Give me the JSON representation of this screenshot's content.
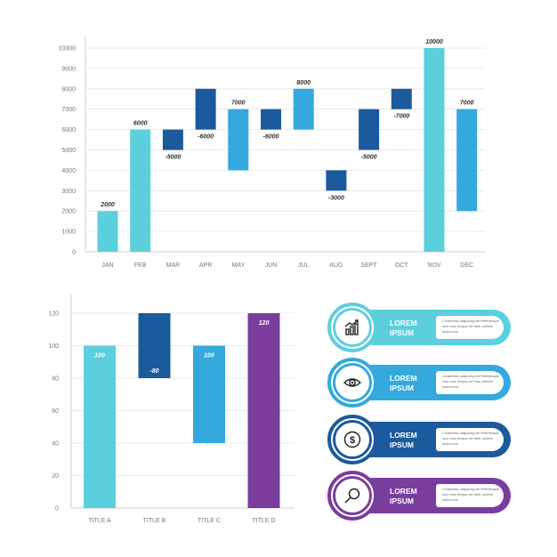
{
  "chart_data": [
    {
      "type": "waterfall",
      "categories": [
        "JAN",
        "FEB",
        "MAR",
        "APR",
        "MAY",
        "JUN",
        "JUL",
        "AUG",
        "SEPT",
        "OCT",
        "NOV",
        "DEC"
      ],
      "values": [
        2000,
        6000,
        -5000,
        -6000,
        7000,
        -6000,
        8000,
        -3000,
        -5000,
        -7000,
        10000,
        7000
      ],
      "bars": [
        {
          "base": 0,
          "top": 2000
        },
        {
          "base": 0,
          "top": 6000
        },
        {
          "base": 5000,
          "top": 6000
        },
        {
          "base": 6000,
          "top": 8000
        },
        {
          "base": 4000,
          "top": 7000
        },
        {
          "base": 6000,
          "top": 7000
        },
        {
          "base": 6000,
          "top": 8000
        },
        {
          "base": 3000,
          "top": 4000
        },
        {
          "base": 5000,
          "top": 7000
        },
        {
          "base": 7000,
          "top": 8000
        },
        {
          "base": 0,
          "top": 10000
        },
        {
          "base": 2000,
          "top": 7000
        }
      ],
      "labels": [
        "2000",
        "6000",
        "-5000",
        "-6000",
        "7000",
        "-6000",
        "8000",
        "-3000",
        "-5000",
        "-7000",
        "10000",
        "7000"
      ],
      "colors": [
        "#5ccfdd",
        "#5ccfdd",
        "#1b5a9c",
        "#1b5a9c",
        "#34a9dd",
        "#1b5a9c",
        "#34a9dd",
        "#1b5a9c",
        "#1b5a9c",
        "#1b5a9c",
        "#5ccfdd",
        "#34a9dd"
      ],
      "yticks": [
        "0",
        "1000",
        "2000",
        "3000",
        "4000",
        "5000",
        "6000",
        "7000",
        "8000",
        "9000",
        "10000"
      ],
      "ylim": [
        0,
        10000
      ],
      "grid": true
    },
    {
      "type": "waterfall",
      "categories": [
        "TITLE A",
        "TITLE B",
        "TITLE C",
        "TITLE D"
      ],
      "values": [
        100,
        -80,
        100,
        120
      ],
      "bars": [
        {
          "base": 0,
          "top": 100
        },
        {
          "base": 80,
          "top": 120
        },
        {
          "base": 40,
          "top": 100
        },
        {
          "base": 0,
          "top": 120
        }
      ],
      "labels": [
        "100",
        "-80",
        "100",
        "120"
      ],
      "colors": [
        "#5ccfdd",
        "#1b5a9c",
        "#34a9dd",
        "#7a3d9e"
      ],
      "yticks": [
        "0",
        "20",
        "40",
        "60",
        "80",
        "100",
        "120"
      ],
      "ylim": [
        0,
        120
      ],
      "grid": true
    }
  ],
  "cards": [
    {
      "title_line1": "LOREM",
      "title_line2": "IPSUM",
      "text": "Consectetur adipiscing elit Pellentesque nunc erat, tempus vel vitae, ultricies luctus urna.",
      "color": "#5ccfdd",
      "icon": "growth-chart-icon"
    },
    {
      "title_line1": "LOREM",
      "title_line2": "IPSUM",
      "text": "Consectetur adipiscing elit Pellentesque nunc erat, tempus vel vitae, ultricies luctus urna.",
      "color": "#34a9dd",
      "icon": "eye-icon"
    },
    {
      "title_line1": "LOREM",
      "title_line2": "IPSUM",
      "text": "Consectetur adipiscing elit Pellentesque nunc erat, tempus vel vitae, ultricies luctus urna.",
      "color": "#1b5a9c",
      "icon": "dollar-icon"
    },
    {
      "title_line1": "LOREM",
      "title_line2": "IPSUM",
      "text": "Consectetur adipiscing elit Pellentesque nunc erat, tempus vel vitae, ultricies luctus urna.",
      "color": "#7a3d9e",
      "icon": "search-icon"
    }
  ]
}
